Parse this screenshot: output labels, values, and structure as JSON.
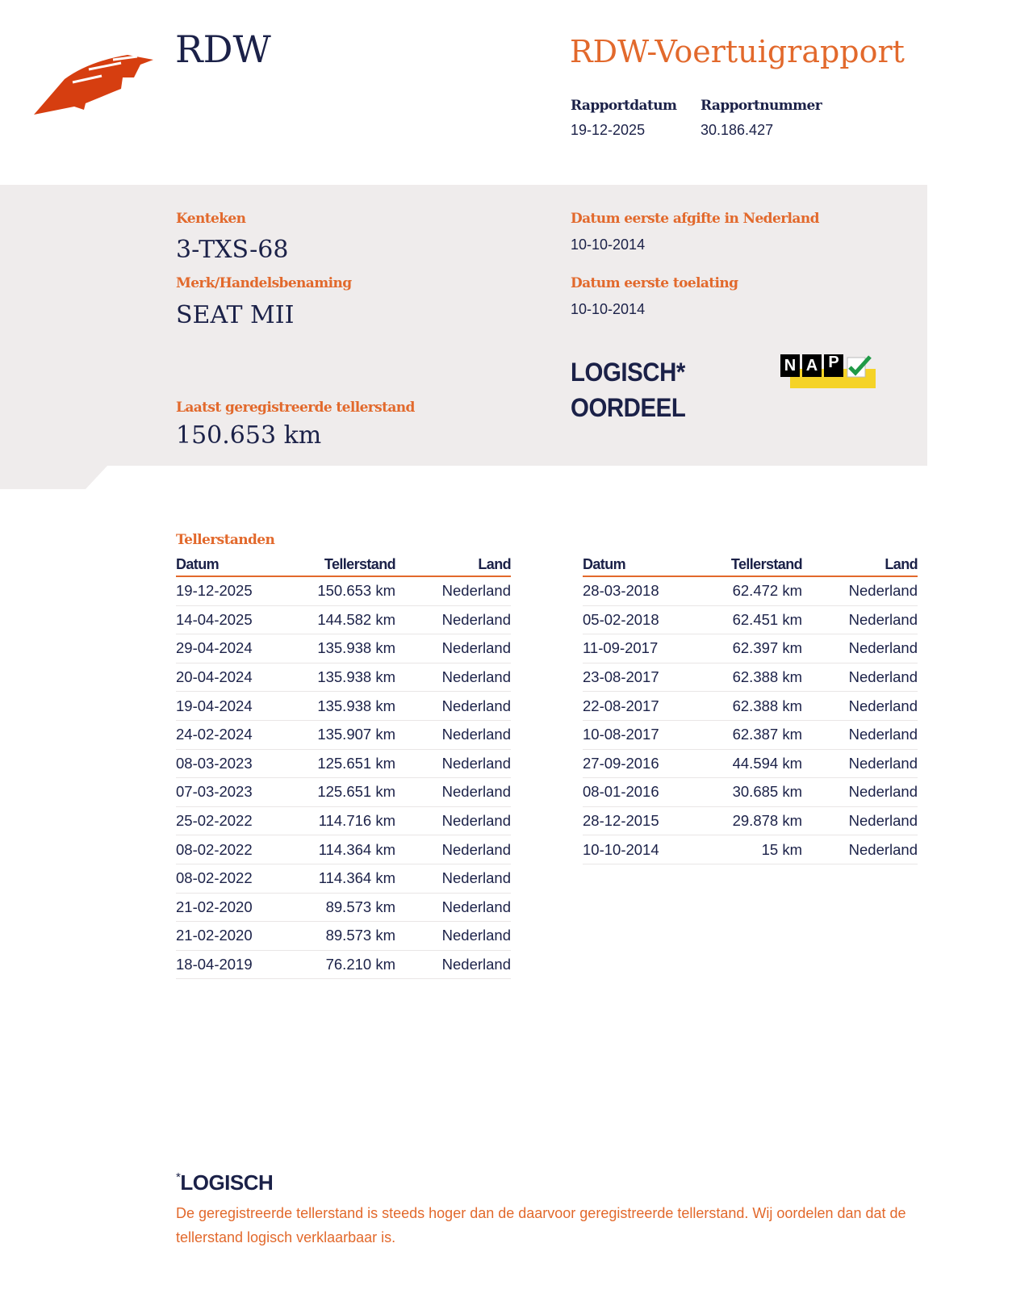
{
  "header": {
    "logo_text": "RDW",
    "title": "RDW-Voertuigrapport",
    "report_date_label": "Rapportdatum",
    "report_date": "19-12-2025",
    "report_number_label": "Rapportnummer",
    "report_number": "30.186.427"
  },
  "vehicle": {
    "plate_label": "Kenteken",
    "plate": "3-TXS-68",
    "brand_label": "Merk/Handelsbenaming",
    "brand": "SEAT MII",
    "first_issue_nl_label": "Datum eerste afgifte in Nederland",
    "first_issue_nl": "10-10-2014",
    "first_admission_label": "Datum eerste toelating",
    "first_admission": "10-10-2014",
    "last_odometer_label": "Laatst geregistreerde tellerstand",
    "last_odometer": "150.653 km",
    "verdict_line1": "LOGISCH*",
    "verdict_line2": "OORDEEL",
    "nap_logo": {
      "letters": [
        "N",
        "A",
        "P"
      ],
      "icon": "checkmark-icon",
      "colors": {
        "box": "#000000",
        "bar": "#f5d327",
        "check": "#1f9a47"
      }
    }
  },
  "odometer": {
    "title": "Tellerstanden",
    "columns": [
      "Datum",
      "Tellerstand",
      "Land"
    ],
    "left_rows": [
      [
        "19-12-2025",
        "150.653 km",
        "Nederland"
      ],
      [
        "14-04-2025",
        "144.582 km",
        "Nederland"
      ],
      [
        "29-04-2024",
        "135.938 km",
        "Nederland"
      ],
      [
        "20-04-2024",
        "135.938 km",
        "Nederland"
      ],
      [
        "19-04-2024",
        "135.938 km",
        "Nederland"
      ],
      [
        "24-02-2024",
        "135.907 km",
        "Nederland"
      ],
      [
        "08-03-2023",
        "125.651 km",
        "Nederland"
      ],
      [
        "07-03-2023",
        "125.651 km",
        "Nederland"
      ],
      [
        "25-02-2022",
        "114.716 km",
        "Nederland"
      ],
      [
        "08-02-2022",
        "114.364 km",
        "Nederland"
      ],
      [
        "08-02-2022",
        "114.364 km",
        "Nederland"
      ],
      [
        "21-02-2020",
        "89.573 km",
        "Nederland"
      ],
      [
        "21-02-2020",
        "89.573 km",
        "Nederland"
      ],
      [
        "18-04-2019",
        "76.210 km",
        "Nederland"
      ]
    ],
    "right_rows": [
      [
        "28-03-2018",
        "62.472 km",
        "Nederland"
      ],
      [
        "05-02-2018",
        "62.451 km",
        "Nederland"
      ],
      [
        "11-09-2017",
        "62.397 km",
        "Nederland"
      ],
      [
        "23-08-2017",
        "62.388 km",
        "Nederland"
      ],
      [
        "22-08-2017",
        "62.388 km",
        "Nederland"
      ],
      [
        "10-08-2017",
        "62.387 km",
        "Nederland"
      ],
      [
        "27-09-2016",
        "44.594 km",
        "Nederland"
      ],
      [
        "08-01-2016",
        "30.685 km",
        "Nederland"
      ],
      [
        "28-12-2015",
        "29.878 km",
        "Nederland"
      ],
      [
        "10-10-2014",
        "15 km",
        "Nederland"
      ]
    ]
  },
  "footnote": {
    "asterisk": "*",
    "title": "LOGISCH",
    "text": "De geregistreerde tellerstand is steeds hoger dan de daarvoor geregistreerde tellerstand. Wij oordelen dan dat de tellerstand logisch verklaarbaar is."
  },
  "colors": {
    "navy": "#1b2148",
    "orange": "#e2692c",
    "panel": "#efecec"
  }
}
